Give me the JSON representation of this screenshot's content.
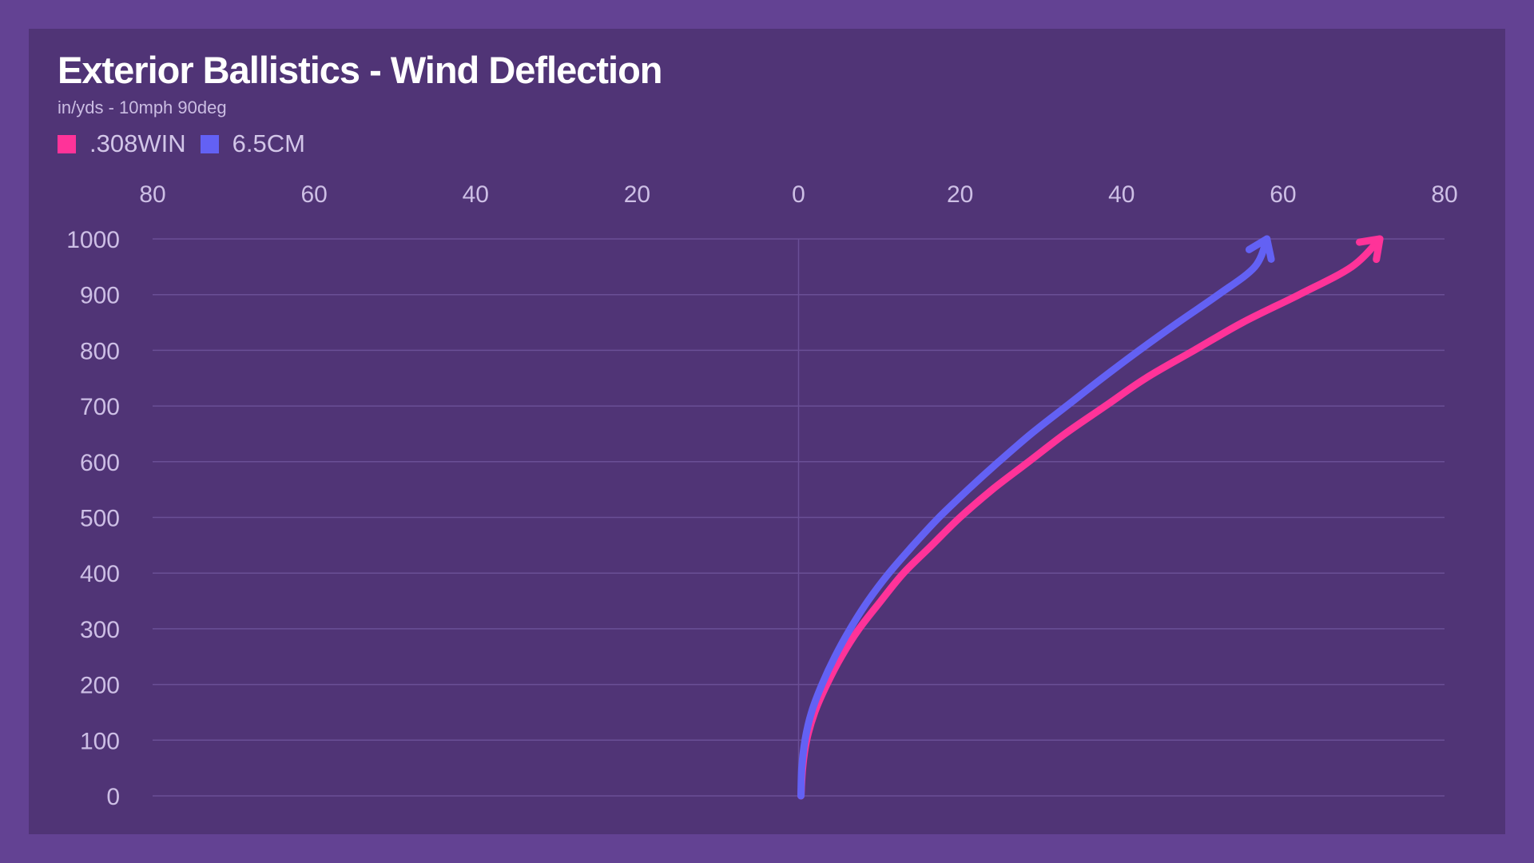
{
  "title": "Exterior Ballistics - Wind Deflection",
  "subtitle": "in/yds - 10mph 90deg",
  "colors": {
    "page_bg": "#634293",
    "panel_bg": "#503476",
    "grid": "#6a4f96",
    "tick_text": "#cdbfe5",
    "series_308": "#ff3399",
    "series_65": "#6361f4"
  },
  "legend": [
    {
      "label": ".308WIN",
      "color": "#ff3399"
    },
    {
      "label": "6.5CM",
      "color": "#6361f4"
    }
  ],
  "chart_data": {
    "type": "line",
    "title": "Exterior Ballistics - Wind Deflection",
    "subtitle": "in/yds - 10mph 90deg",
    "x_axis": {
      "position": "top",
      "ticks": [
        80,
        60,
        40,
        20,
        0,
        20,
        40,
        60,
        80
      ],
      "range": [
        -80,
        80
      ]
    },
    "y_axis": {
      "ticks": [
        1000,
        900,
        800,
        700,
        600,
        500,
        400,
        300,
        200,
        100,
        0
      ],
      "range": [
        0,
        1000
      ]
    },
    "grid": "horizontal",
    "legend_position": "top-left",
    "arrow_heads": true,
    "series": [
      {
        "name": ".308WIN",
        "color": "#ff3399",
        "points": [
          [
            0.3,
            0
          ],
          [
            0.5,
            50
          ],
          [
            1,
            100
          ],
          [
            2,
            150
          ],
          [
            3.5,
            200
          ],
          [
            5.3,
            250
          ],
          [
            7.5,
            300
          ],
          [
            10.2,
            350
          ],
          [
            13,
            400
          ],
          [
            16.5,
            450
          ],
          [
            20,
            500
          ],
          [
            24,
            550
          ],
          [
            28.5,
            600
          ],
          [
            33,
            650
          ],
          [
            38,
            700
          ],
          [
            43,
            750
          ],
          [
            49,
            800
          ],
          [
            55,
            850
          ],
          [
            62,
            900
          ],
          [
            68.5,
            950
          ],
          [
            72,
            1000
          ]
        ]
      },
      {
        "name": "6.5CM",
        "color": "#6361f4",
        "points": [
          [
            0.3,
            0
          ],
          [
            0.4,
            50
          ],
          [
            0.8,
            100
          ],
          [
            1.6,
            150
          ],
          [
            2.9,
            200
          ],
          [
            4.5,
            250
          ],
          [
            6.4,
            300
          ],
          [
            8.6,
            350
          ],
          [
            11.2,
            400
          ],
          [
            14.2,
            450
          ],
          [
            17.4,
            500
          ],
          [
            21,
            550
          ],
          [
            24.8,
            600
          ],
          [
            28.8,
            650
          ],
          [
            33.2,
            700
          ],
          [
            37.6,
            750
          ],
          [
            42.2,
            800
          ],
          [
            47,
            850
          ],
          [
            52,
            900
          ],
          [
            56.5,
            950
          ],
          [
            58,
            1000
          ]
        ]
      }
    ]
  }
}
